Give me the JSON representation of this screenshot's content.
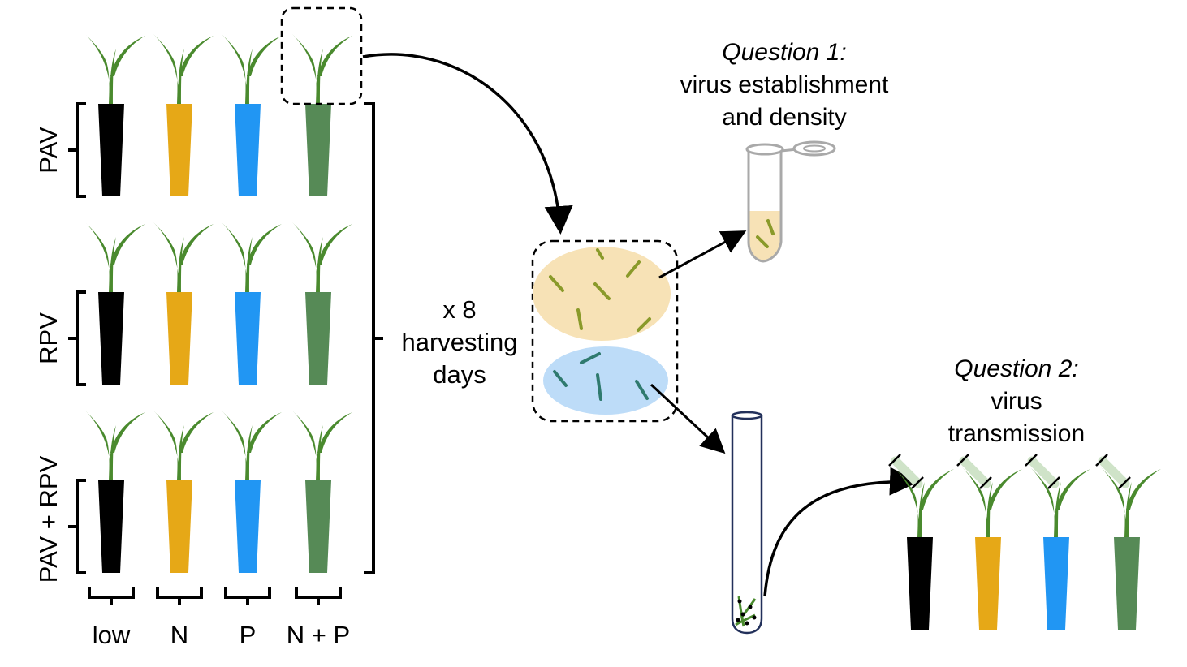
{
  "groups": {
    "pav": "PAV",
    "rpv": "RPV",
    "pav_rpv": "PAV + RPV"
  },
  "treatments": {
    "low": "low",
    "n": "N",
    "p": "P",
    "np": "N + P"
  },
  "harvest": {
    "line1": "x 8",
    "line2": "harvesting",
    "line3": "days"
  },
  "question1": {
    "title": "Question 1:",
    "line1": "virus establishment",
    "line2": "and density"
  },
  "question2": {
    "title": "Question 2:",
    "line1": "virus",
    "line2": "transmission"
  },
  "colors": {
    "low": "#000000",
    "n": "#e6a817",
    "p": "#2196f3",
    "np": "#568a56",
    "leaf": "#4a8a2e",
    "yellow_dish": "#f7e2b6",
    "blue_dish": "#bddcf8",
    "tube_outline": "#22305a"
  },
  "icons": {
    "plant": "plant-icon",
    "pot": "pot-icon",
    "microcentrifuge_tube": "microcentrifuge-tube-icon",
    "test_tube": "test-tube-icon",
    "petri_dish": "petri-dish-icon",
    "arrow": "arrow-icon",
    "bracket": "bracket-icon"
  }
}
